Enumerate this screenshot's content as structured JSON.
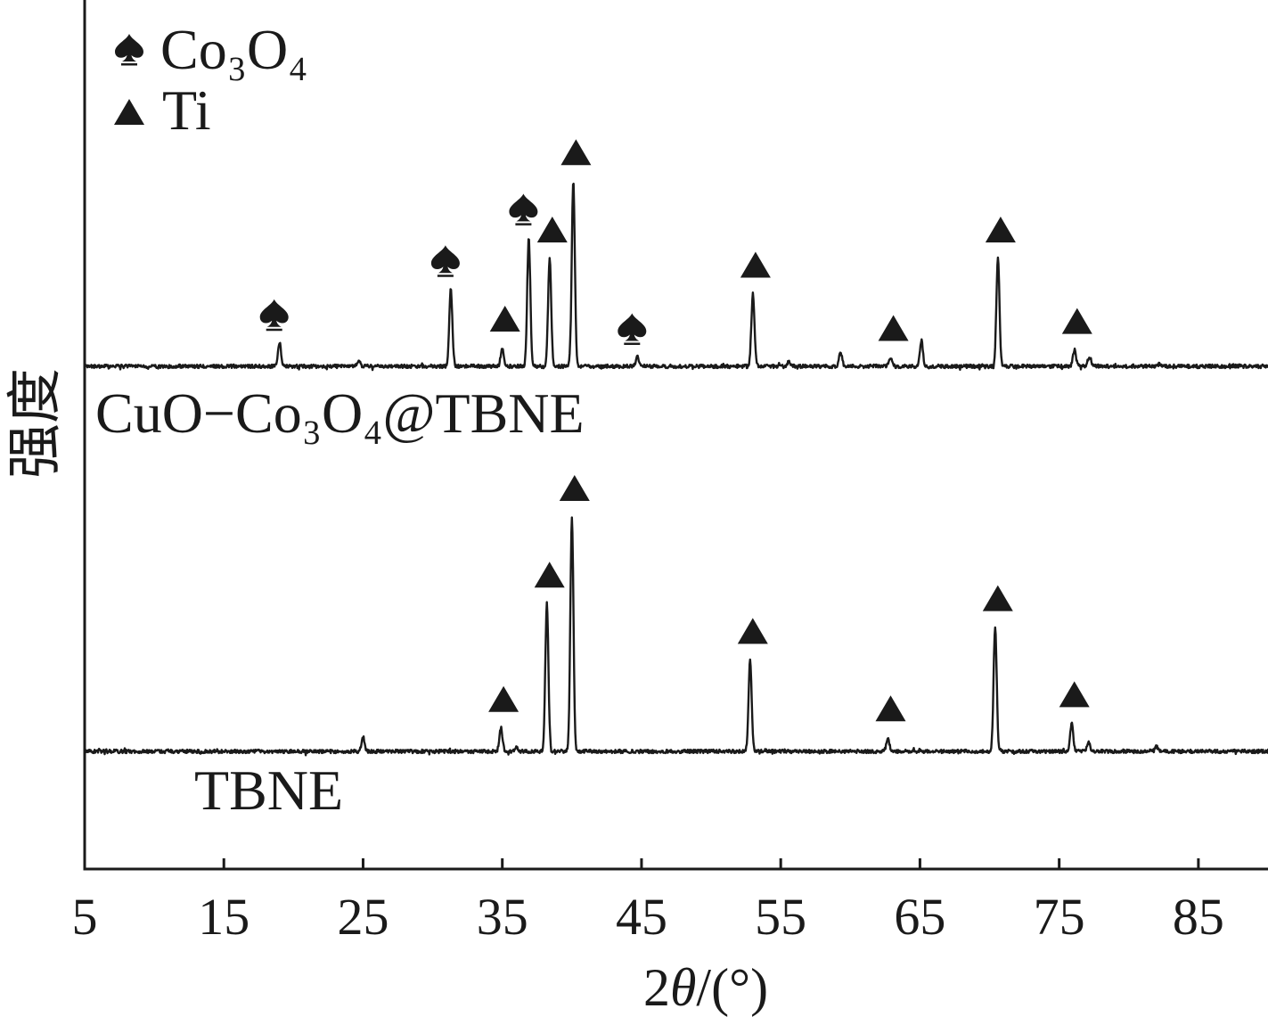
{
  "chart_data": {
    "type": "line",
    "title": "",
    "xlabel": "2θ/(°)",
    "ylabel": "强度",
    "xlim": [
      5,
      90
    ],
    "xticks": [
      5,
      15,
      25,
      35,
      45,
      55,
      65,
      75,
      85
    ],
    "yticks": [],
    "grid": false,
    "legend": {
      "position": "top-left",
      "entries": [
        {
          "marker": "spade",
          "label": "Co₃O₄"
        },
        {
          "marker": "triangle",
          "label": "Ti"
        }
      ]
    },
    "series": [
      {
        "name": "CuO−Co₃O₄@TBNE",
        "peaks": [
          [
            19.0,
            10
          ],
          [
            24.7,
            2
          ],
          [
            31.3,
            33
          ],
          [
            35.0,
            8
          ],
          [
            36.9,
            55
          ],
          [
            38.4,
            46
          ],
          [
            40.1,
            79
          ],
          [
            44.7,
            4
          ],
          [
            53.0,
            31
          ],
          [
            55.6,
            2
          ],
          [
            59.3,
            6
          ],
          [
            62.9,
            4
          ],
          [
            65.1,
            11
          ],
          [
            70.6,
            46
          ],
          [
            76.1,
            7
          ],
          [
            77.2,
            4
          ],
          [
            82.2,
            1
          ]
        ],
        "markers": [
          {
            "x": 19.0,
            "marker": "spade"
          },
          {
            "x": 31.3,
            "marker": "spade"
          },
          {
            "x": 35.0,
            "marker": "triangle"
          },
          {
            "x": 36.9,
            "marker": "spade"
          },
          {
            "x": 38.4,
            "marker": "triangle"
          },
          {
            "x": 40.1,
            "marker": "triangle"
          },
          {
            "x": 44.7,
            "marker": "spade"
          },
          {
            "x": 53.0,
            "marker": "triangle"
          },
          {
            "x": 62.9,
            "marker": "triangle"
          },
          {
            "x": 70.6,
            "marker": "triangle"
          },
          {
            "x": 76.1,
            "marker": "triangle"
          }
        ]
      },
      {
        "name": "TBNE",
        "peaks": [
          [
            25.0,
            6
          ],
          [
            34.9,
            10
          ],
          [
            36.0,
            1.5
          ],
          [
            38.2,
            63
          ],
          [
            40.0,
            100
          ],
          [
            52.8,
            39
          ],
          [
            62.7,
            6
          ],
          [
            70.4,
            53
          ],
          [
            75.9,
            12
          ],
          [
            77.1,
            4
          ],
          [
            82.0,
            2
          ]
        ],
        "markers": [
          {
            "x": 34.9,
            "marker": "triangle"
          },
          {
            "x": 38.2,
            "marker": "triangle"
          },
          {
            "x": 40.0,
            "marker": "triangle"
          },
          {
            "x": 52.8,
            "marker": "triangle"
          },
          {
            "x": 62.7,
            "marker": "triangle"
          },
          {
            "x": 70.4,
            "marker": "triangle"
          },
          {
            "x": 75.9,
            "marker": "triangle"
          }
        ]
      }
    ]
  },
  "colors": {
    "ink": "#1a1a1a",
    "background": "#ffffff"
  }
}
